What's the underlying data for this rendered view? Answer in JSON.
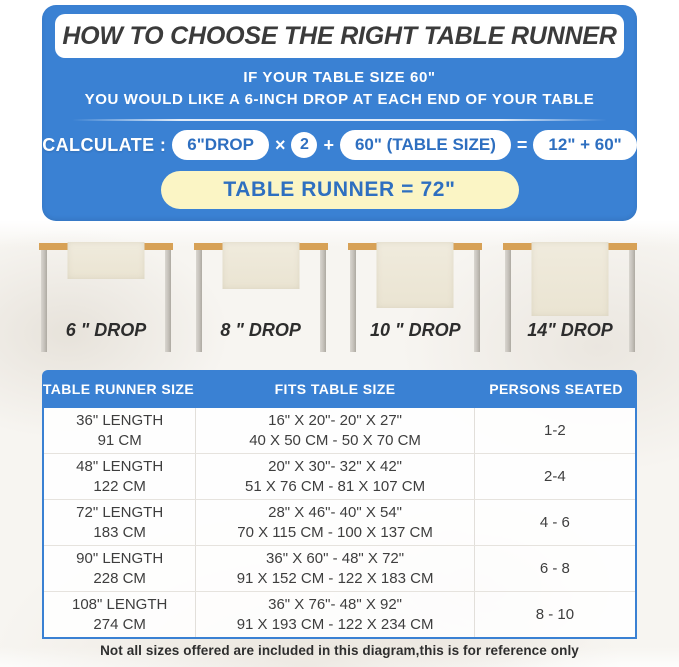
{
  "header": {
    "title": "HOW TO CHOOSE THE RIGHT TABLE RUNNER",
    "subtitle_line1": "IF YOUR TABLE SIZE 60\"",
    "subtitle_line2": "YOU WOULD LIKE A 6-INCH DROP AT EACH END OF YOUR TABLE"
  },
  "calculation": {
    "label": "CALCULATE :",
    "drop_pill": "6\"DROP",
    "times_sign": "×",
    "multiplier": "2",
    "plus_sign": "+",
    "table_size_pill": "60\" (TABLE SIZE)",
    "equals_sign": "=",
    "sum_pill": "12\" + 60\"",
    "result": "TABLE RUNNER = 72\""
  },
  "diagram": {
    "drops": [
      {
        "label": "6 \" DROP"
      },
      {
        "label": "8 \" DROP"
      },
      {
        "label": "10 \" DROP"
      },
      {
        "label": "14\" DROP"
      }
    ]
  },
  "size_table": {
    "headers": [
      "TABLE RUNNER SIZE",
      "FITS TABLE SIZE",
      "PERSONS SEATED"
    ],
    "rows": [
      {
        "runner_size": [
          "36\" LENGTH",
          "91 CM"
        ],
        "fits": [
          "16\" X 20\"- 20\" X 27\"",
          "40 X 50 CM - 50 X 70 CM"
        ],
        "persons": "1-2"
      },
      {
        "runner_size": [
          "48\" LENGTH",
          "122 CM"
        ],
        "fits": [
          "20\" X 30\"- 32\" X 42\"",
          "51 X 76 CM - 81 X 107 CM"
        ],
        "persons": "2-4"
      },
      {
        "runner_size": [
          "72\" LENGTH",
          "183 CM"
        ],
        "fits": [
          "28\" X 46\"- 40\" X 54\"",
          "70 X 115 CM - 100 X 137 CM"
        ],
        "persons": "4 - 6"
      },
      {
        "runner_size": [
          "90\" LENGTH",
          "228 CM"
        ],
        "fits": [
          "36\" X 60\" - 48\" X 72\"",
          "91 X 152 CM - 122 X 183 CM"
        ],
        "persons": "6 - 8"
      },
      {
        "runner_size": [
          "108\" LENGTH",
          "274 CM"
        ],
        "fits": [
          "36\" X 76\"- 48\" X 92\"",
          "91 X 193 CM - 122 X 234 CM"
        ],
        "persons": "8 - 10"
      }
    ]
  },
  "footnote": "Not all sizes offered are included in this diagram,this is for reference only",
  "colors": {
    "panel_blue": "#3a81d3",
    "accent_blue": "#2e6fc0",
    "result_yellow": "#fbf5c5",
    "tabletop_tan": "#d7a156",
    "runner_cream": "#f0ebdd",
    "leg_gray": "#c5c1ba"
  }
}
